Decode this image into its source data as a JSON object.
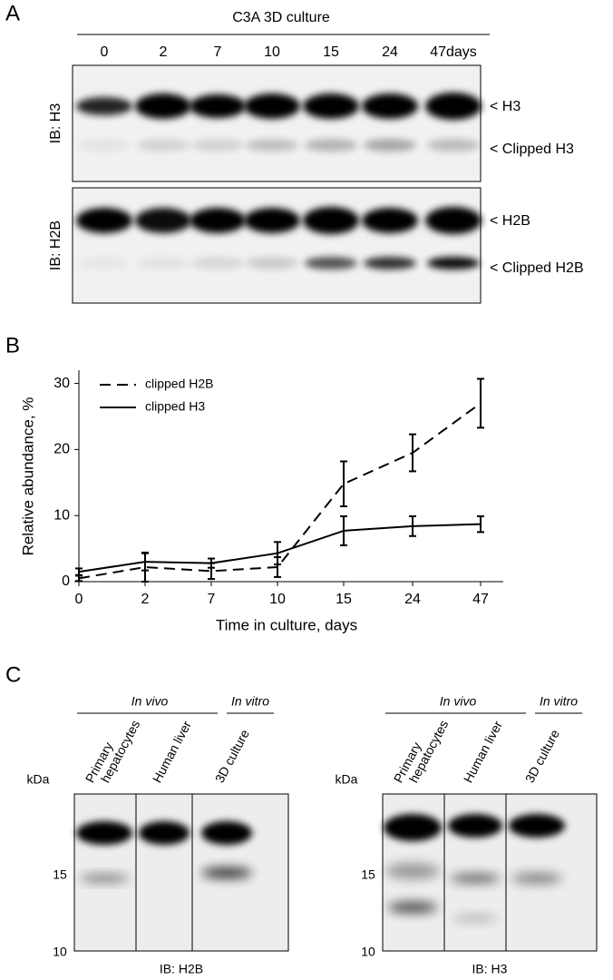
{
  "panel_a": {
    "letter": "A",
    "header": "C3A 3D culture",
    "lanes": [
      "0",
      "2",
      "7",
      "10",
      "15",
      "24",
      "47days"
    ],
    "blots": [
      {
        "label": "IB: H3",
        "bands": [
          "< H3",
          "< Clipped H3"
        ]
      },
      {
        "label": "IB: H2B",
        "bands": [
          "< H2B",
          "< Clipped H2B"
        ]
      }
    ]
  },
  "panel_b": {
    "letter": "B"
  },
  "chart_data": {
    "type": "line",
    "x_label": "Time in culture, days",
    "y_label": "Relative abundance, %",
    "categories": [
      "0",
      "2",
      "7",
      "10",
      "15",
      "24",
      "47"
    ],
    "ylim": [
      0,
      32
    ],
    "yticks": [
      0,
      10,
      20,
      30
    ],
    "legend": "top-left",
    "series": [
      {
        "name": "clipped H2B",
        "color": "#000000",
        "style": "dashed",
        "values": [
          0.5,
          2.2,
          1.6,
          2.2,
          14.8,
          19.5,
          27
        ],
        "error": [
          0.4,
          2.2,
          1.2,
          1.5,
          3.4,
          2.8,
          3.7
        ]
      },
      {
        "name": "clipped H3",
        "color": "#000000",
        "style": "solid",
        "values": [
          1.5,
          3.0,
          2.8,
          4.3,
          7.7,
          8.4,
          8.7
        ],
        "error": [
          0.5,
          1.3,
          0.7,
          1.7,
          2.2,
          1.5,
          1.2
        ]
      }
    ]
  },
  "panel_c": {
    "letter": "C",
    "blots": [
      {
        "groups": [
          "In vivo",
          "In vitro"
        ],
        "lanes": [
          [
            "Primary",
            "hepatocytes"
          ],
          [
            "Human liver"
          ],
          [
            "3D culture"
          ]
        ],
        "unit": "kDa",
        "markers": [
          "15",
          "10"
        ],
        "caption": "IB: H2B"
      },
      {
        "groups": [
          "In vivo",
          "In vitro"
        ],
        "lanes": [
          [
            "Primary",
            "hepatocytes"
          ],
          [
            "Human liver"
          ],
          [
            "3D culture"
          ]
        ],
        "unit": "kDa",
        "markers": [
          "15",
          "10"
        ],
        "caption": "IB: H3"
      }
    ]
  }
}
